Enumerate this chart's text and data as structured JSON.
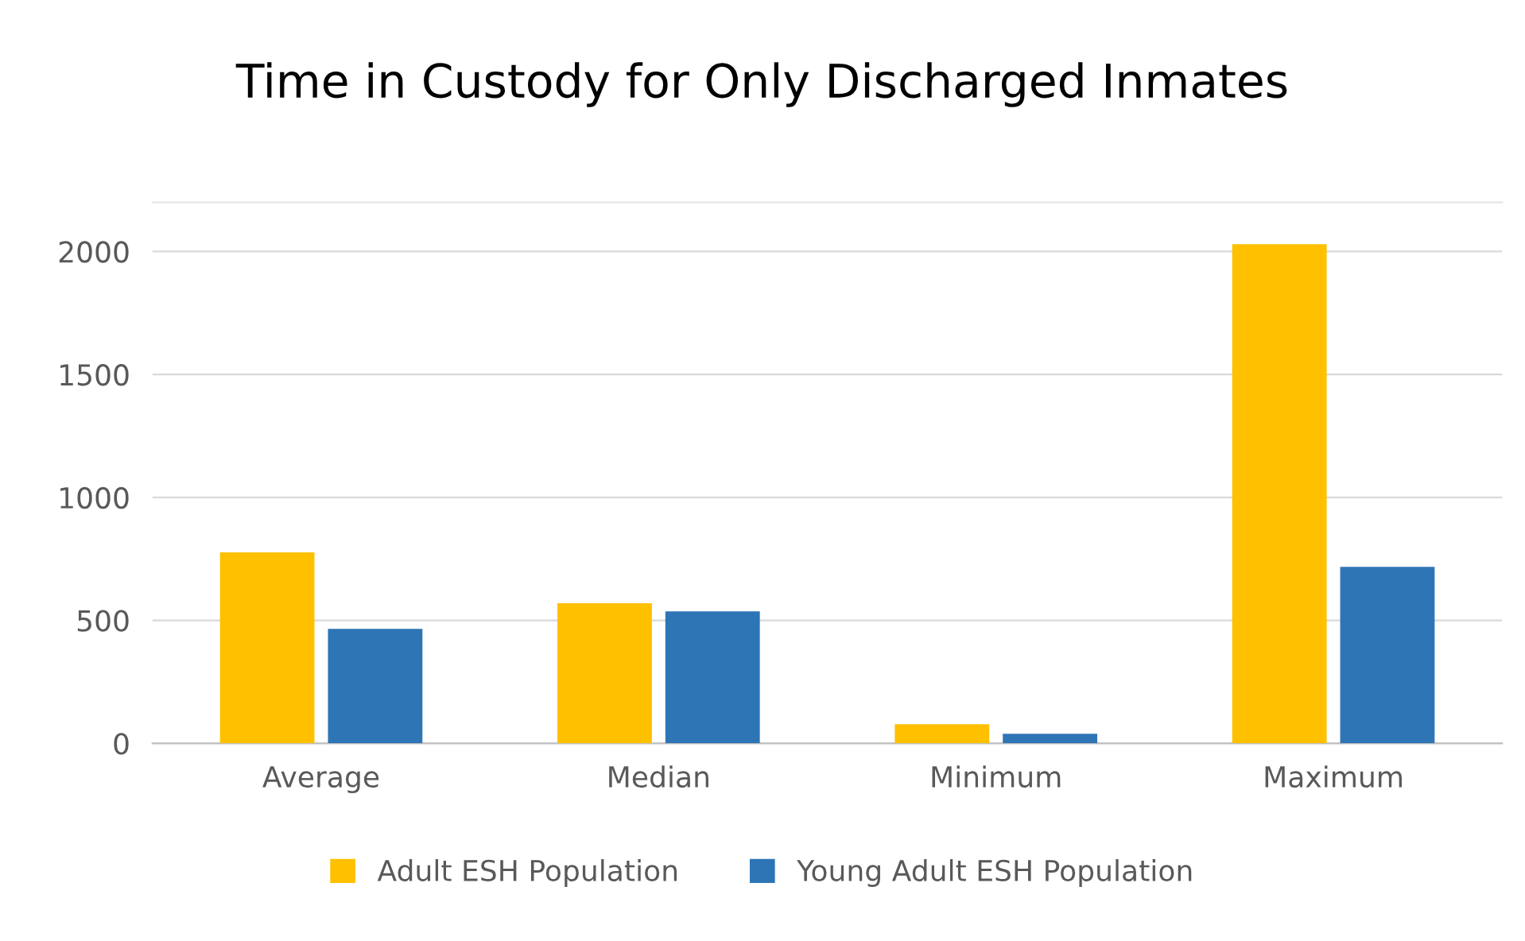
{
  "chart_data": {
    "type": "bar",
    "title": "Time in Custody for Only Discharged Inmates",
    "categories": [
      "Average",
      "Median",
      "Minimum",
      "Maximum"
    ],
    "series": [
      {
        "name": "Adult ESH Population",
        "color": "#ffc000",
        "values": [
          777,
          570,
          78,
          2030
        ]
      },
      {
        "name": "Young Adult ESH Population",
        "color": "#2e75b6",
        "values": [
          466,
          537,
          39,
          718
        ]
      }
    ],
    "ylim": [
      0,
      2200
    ],
    "yticks": [
      0,
      500,
      1000,
      1500,
      2000
    ],
    "grid": "y",
    "legend": "bottom"
  }
}
